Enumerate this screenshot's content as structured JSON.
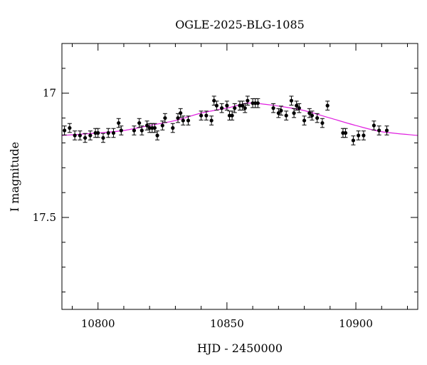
{
  "chart_data": {
    "type": "scatter",
    "title": "OGLE-2025-BLG-1085",
    "xlabel": "HJD - 2450000",
    "ylabel": "I magnitude",
    "xlim": [
      10786,
      10924
    ],
    "ylim": [
      17.87,
      16.8
    ],
    "y_inverted": true,
    "grid": false,
    "x_ticks": [
      10800,
      10850,
      10900
    ],
    "x_tick_labels": [
      "10800",
      "10850",
      "10900"
    ],
    "y_ticks": [
      17,
      17.5
    ],
    "y_tick_labels": [
      "17",
      "17.5"
    ],
    "colors": {
      "points": "#000000",
      "model": "#e020e0",
      "axes": "#000000"
    },
    "series": [
      {
        "type": "points",
        "x": [
          10787,
          10789,
          10791,
          10793,
          10795,
          10797,
          10799,
          10800,
          10802,
          10804,
          10806,
          10808,
          10809,
          10814,
          10816,
          10817,
          10819,
          10820,
          10821,
          10822,
          10823,
          10825,
          10826,
          10829,
          10831,
          10832,
          10833,
          10835,
          10840,
          10842,
          10844,
          10845,
          10846,
          10848,
          10850,
          10851,
          10852,
          10853,
          10855,
          10856,
          10857,
          10858,
          10860,
          10861,
          10862,
          10868,
          10870,
          10871,
          10873,
          10875,
          10876,
          10877,
          10878,
          10880,
          10882,
          10883,
          10885,
          10887,
          10889,
          10895,
          10896,
          10899,
          10901,
          10903,
          10907,
          10909,
          10912
        ],
        "y": [
          17.15,
          17.14,
          17.17,
          17.17,
          17.18,
          17.17,
          17.16,
          17.16,
          17.18,
          17.16,
          17.16,
          17.12,
          17.15,
          17.15,
          17.12,
          17.15,
          17.13,
          17.14,
          17.14,
          17.14,
          17.17,
          17.13,
          17.1,
          17.14,
          17.1,
          17.08,
          17.11,
          17.11,
          17.09,
          17.09,
          17.11,
          17.03,
          17.05,
          17.06,
          17.05,
          17.09,
          17.09,
          17.06,
          17.05,
          17.05,
          17.06,
          17.03,
          17.04,
          17.04,
          17.04,
          17.06,
          17.08,
          17.07,
          17.09,
          17.03,
          17.08,
          17.05,
          17.06,
          17.11,
          17.08,
          17.09,
          17.1,
          17.12,
          17.05,
          17.16,
          17.16,
          17.19,
          17.17,
          17.17,
          17.13,
          17.15,
          17.15
        ],
        "err": [
          0.018,
          0.018,
          0.018,
          0.018,
          0.018,
          0.018,
          0.018,
          0.018,
          0.018,
          0.018,
          0.018,
          0.018,
          0.018,
          0.018,
          0.018,
          0.018,
          0.018,
          0.018,
          0.018,
          0.018,
          0.018,
          0.018,
          0.018,
          0.018,
          0.018,
          0.018,
          0.018,
          0.018,
          0.018,
          0.018,
          0.018,
          0.018,
          0.018,
          0.018,
          0.018,
          0.018,
          0.018,
          0.018,
          0.018,
          0.018,
          0.018,
          0.018,
          0.018,
          0.018,
          0.018,
          0.018,
          0.018,
          0.018,
          0.018,
          0.018,
          0.018,
          0.018,
          0.018,
          0.018,
          0.018,
          0.018,
          0.018,
          0.018,
          0.018,
          0.018,
          0.018,
          0.018,
          0.018,
          0.018,
          0.018,
          0.018,
          0.018
        ]
      },
      {
        "type": "model-curve",
        "x": [
          10786,
          10800,
          10810,
          10820,
          10830,
          10840,
          10850,
          10858,
          10865,
          10872,
          10880,
          10890,
          10900,
          10910,
          10924
        ],
        "y": [
          17.17,
          17.16,
          17.15,
          17.13,
          17.11,
          17.08,
          17.06,
          17.04,
          17.045,
          17.055,
          17.07,
          17.1,
          17.13,
          17.155,
          17.17
        ]
      }
    ]
  }
}
